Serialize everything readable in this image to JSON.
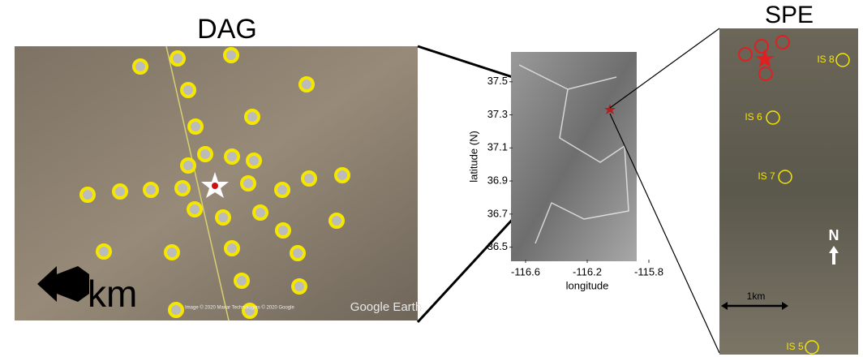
{
  "dag": {
    "title": "DAG",
    "scale_label": "km",
    "watermark": "Google Earth",
    "attribution": "Image © 2020 Maxar Technologies © 2020 Google"
  },
  "map": {
    "ylabel": "latitude (N)",
    "xlabel": "longitude",
    "xlim": [
      -116.7,
      -115.8
    ],
    "ylim": [
      36.4,
      37.7
    ],
    "xticks": [
      -116.6,
      -116.2,
      -115.8
    ],
    "yticks": [
      37.5,
      37.3,
      37.1,
      36.9,
      36.7,
      36.5
    ]
  },
  "spe": {
    "title": "SPE",
    "north": "N",
    "scale_label": "1km",
    "stations": [
      "IS 8",
      "IS 6",
      "IS 7",
      "IS 5"
    ]
  }
}
